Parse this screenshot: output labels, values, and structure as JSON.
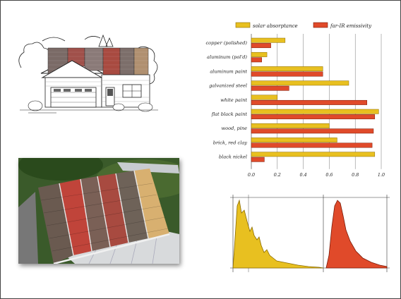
{
  "chart_data": [
    {
      "type": "bar",
      "orientation": "horizontal",
      "categories": [
        "copper (polished)",
        "aluminum (pol'd)",
        "aluminum paint",
        "galvanized steel",
        "white paint",
        "flat black paint",
        "wood, pine",
        "brick, red clay",
        "black nickel"
      ],
      "series": [
        {
          "name": "solar absorptance",
          "color": "#e8c020",
          "values": [
            0.26,
            0.12,
            0.55,
            0.75,
            0.2,
            0.98,
            0.6,
            0.66,
            0.95
          ]
        },
        {
          "name": "far-IR emissivity",
          "color": "#e04a2a",
          "values": [
            0.15,
            0.08,
            0.55,
            0.29,
            0.89,
            0.95,
            0.94,
            0.93,
            0.1
          ]
        }
      ],
      "xlim": [
        0,
        1
      ],
      "ticks": [
        "0.0",
        "0.2",
        "0.4",
        "0.6",
        "0.8",
        "1.0"
      ],
      "grid": true,
      "legend_position": "top"
    },
    {
      "type": "area",
      "series": [
        {
          "color": "#e8c020",
          "shape": "solar spectrum (short wavelength)"
        },
        {
          "color": "#e04a2a",
          "shape": "thermal infrared spectrum (long wavelength)"
        }
      ]
    }
  ],
  "colors": {
    "solar": "#e8c020",
    "solar_edge": "#8a6a00",
    "ir": "#e04a2a",
    "ir_edge": "#7a1a08",
    "frame": "#444444"
  },
  "images": {
    "house_sketch": "house-sketch with striped roof test panels",
    "roof_photo": "photo of roof with six tile/shingle test strips"
  }
}
